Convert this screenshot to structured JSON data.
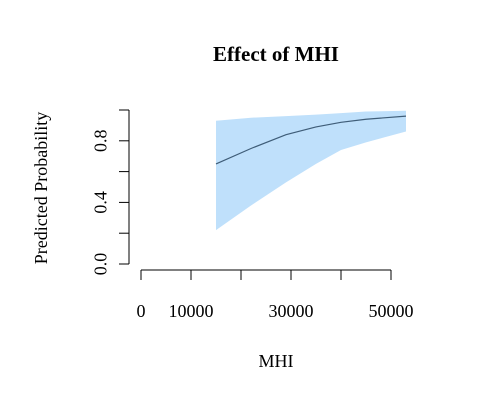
{
  "chart_data": {
    "type": "area",
    "title": "Effect of MHI",
    "xlabel": "MHI",
    "ylabel": "Predicted Probability",
    "xlim": [
      0,
      53000
    ],
    "ylim": [
      0,
      1
    ],
    "x_ticks": [
      0,
      10000,
      30000,
      50000
    ],
    "x_tick_labels": [
      "0",
      "10000",
      "30000",
      "50000"
    ],
    "y_ticks": [
      0.0,
      0.2,
      0.4,
      0.6,
      0.8,
      1.0
    ],
    "y_tick_labels": [
      "0.0",
      "",
      "0.4",
      "",
      "0.8",
      ""
    ],
    "grid": false,
    "series": [
      {
        "x": [
          15000,
          22000,
          29000,
          35000,
          40000,
          45000,
          53000
        ],
        "values": [
          0.65,
          0.75,
          0.84,
          0.89,
          0.92,
          0.94,
          0.96
        ],
        "lower": [
          0.22,
          0.38,
          0.53,
          0.65,
          0.74,
          0.79,
          0.86
        ],
        "upper": [
          0.93,
          0.95,
          0.96,
          0.97,
          0.98,
          0.99,
          0.995
        ],
        "line_color": "#3f5d78",
        "band_color": "#bfe0fb"
      }
    ]
  }
}
